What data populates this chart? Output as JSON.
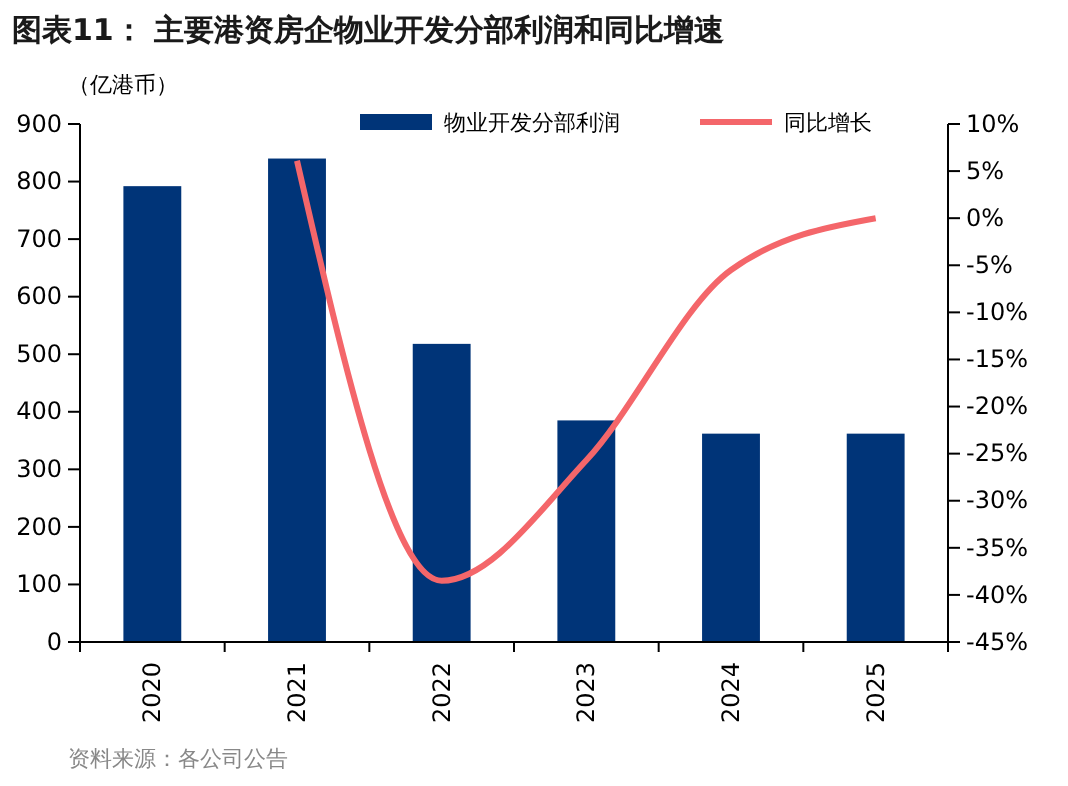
{
  "chart_data": {
    "type": "bar",
    "title": "图表11：  主要港资房企物业开发分部利润和同比增速",
    "ylabel": "（亿港币）",
    "categories": [
      "2020",
      "2021",
      "2022",
      "2023",
      "2024",
      "2025"
    ],
    "series": [
      {
        "name": "物业开发分部利润",
        "color": "#003478",
        "values": [
          792,
          840,
          518,
          385,
          362,
          362
        ]
      },
      {
        "name": "同比增长",
        "type": "line",
        "axis": "y2",
        "color": "#f4666a",
        "values": [
          null,
          6.1,
          -38.5,
          -25.7,
          -5.5,
          0
        ]
      }
    ],
    "ylim": [
      0,
      900
    ],
    "yticks": [
      0,
      100,
      200,
      300,
      400,
      500,
      600,
      700,
      800,
      900
    ],
    "y2lim": [
      -45,
      10
    ],
    "y2ticks": [
      {
        "value": -45,
        "label": "-45%"
      },
      {
        "value": -40,
        "label": "-40%"
      },
      {
        "value": -35,
        "label": "-35%"
      },
      {
        "value": -30,
        "label": "-30%"
      },
      {
        "value": -25,
        "label": "-25%"
      },
      {
        "value": -20,
        "label": "-20%"
      },
      {
        "value": -15,
        "label": "-15%"
      },
      {
        "value": -10,
        "label": "-10%"
      },
      {
        "value": -5,
        "label": "-5%"
      },
      {
        "value": 0,
        "label": "0%"
      },
      {
        "value": 5,
        "label": "5%"
      },
      {
        "value": 10,
        "label": "10%"
      }
    ],
    "legend": "top",
    "grid": false,
    "marker": "none",
    "annotations": [
      "资料来源：各公司公告"
    ]
  }
}
